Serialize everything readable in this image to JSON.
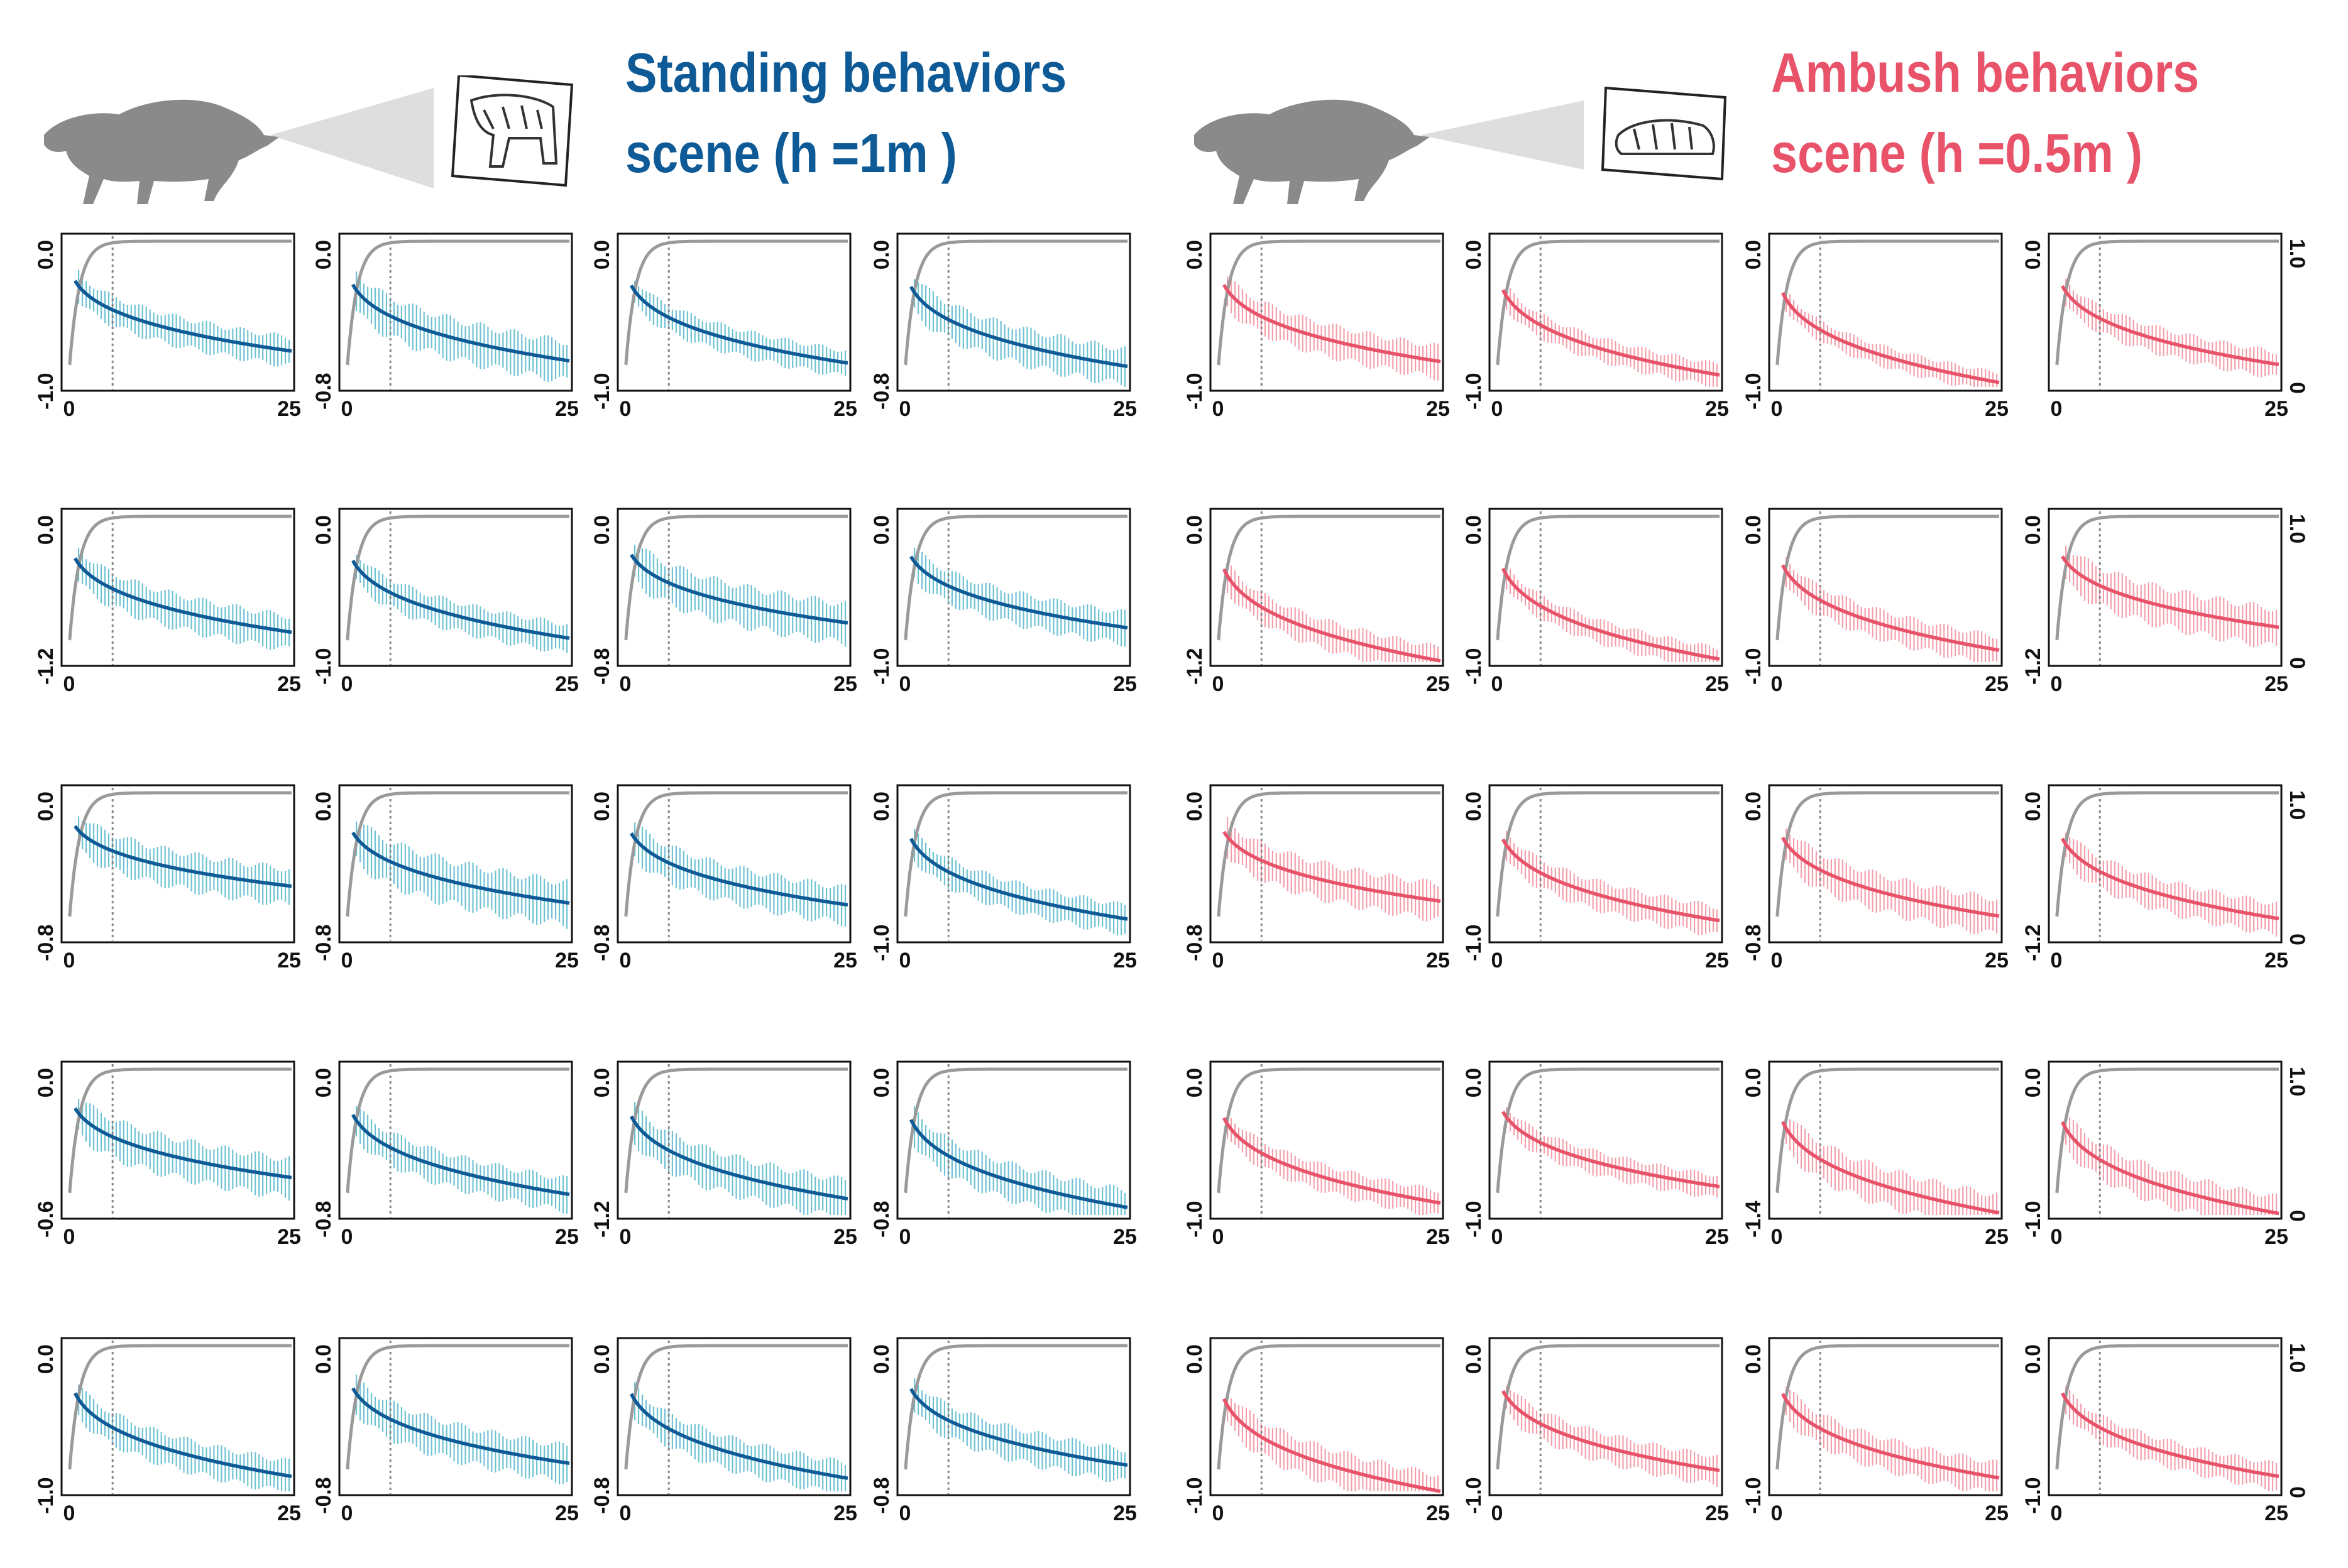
{
  "colors": {
    "standing": "#0d5a96",
    "standing_band": "#6fc2d4",
    "ambush": "#e8536a",
    "ambush_band": "#f4a0ac",
    "accumulation": "#9a9a9a",
    "threshold": "#888888",
    "animal": "#8a8a8a"
  },
  "scenes": [
    {
      "id": "standing",
      "title_line1": "Standing behaviors",
      "title_line2": "scene  (h =1m )",
      "boar_icon": "boar-icon",
      "predator_icon": "standing-tiger-icon"
    },
    {
      "id": "ambush",
      "title_line1": "Ambush behaviors",
      "title_line2": "scene  (h =0.5m  )",
      "boar_icon": "boar-icon",
      "predator_icon": "crouching-tiger-icon"
    }
  ],
  "chart_data": {
    "type": "line",
    "description_axes": "small-multiple grid: 5 rows x 8 panels; left 4 columns = standing scene, right 4 columns = ambush scene",
    "x": {
      "min": 0,
      "max": 25,
      "ticks": [
        "0",
        "25"
      ],
      "threshold": 5
    },
    "y_top_label": "0.0",
    "right_axis": {
      "min": 0,
      "max": 1.0,
      "ticks": [
        "1.0",
        "0"
      ],
      "series": "cumulative (gray)"
    },
    "series": [
      "decay curve with error bars",
      "cumulative curve (gray)"
    ],
    "rows": [
      [
        {
          "scene": "standing",
          "ymin": -1.0,
          "ybottom_label": "-1.0",
          "end": -0.76,
          "band": 0.1
        },
        {
          "scene": "standing",
          "ymin": -0.8,
          "ybottom_label": "-0.8",
          "end": -0.66,
          "band": 0.11
        },
        {
          "scene": "standing",
          "ymin": -1.0,
          "ybottom_label": "-1.0",
          "end": -0.84,
          "band": 0.09
        },
        {
          "scene": "standing",
          "ymin": -0.8,
          "ybottom_label": "-0.8",
          "end": -0.69,
          "band": 0.1
        },
        {
          "scene": "ambush",
          "ymin": -1.0,
          "ybottom_label": "-1.0",
          "end": -0.83,
          "band": 0.11
        },
        {
          "scene": "ambush",
          "ymin": -1.0,
          "ybottom_label": "-1.0",
          "end": -0.92,
          "band": 0.08
        },
        {
          "scene": "ambush",
          "ymin": -1.0,
          "ybottom_label": "-1.0",
          "end": -0.97,
          "band": 0.07
        },
        {
          "scene": "ambush",
          "ymin": -1.0,
          "ybottom_label": "",
          "end": -0.85,
          "band": 0.09,
          "right_axis": true
        }
      ],
      [
        {
          "scene": "standing",
          "ymin": -1.2,
          "ybottom_label": "-1.2",
          "end": -0.96,
          "band": 0.14
        },
        {
          "scene": "standing",
          "ymin": -1.0,
          "ybottom_label": "-1.0",
          "end": -0.84,
          "band": 0.1
        },
        {
          "scene": "standing",
          "ymin": -0.8,
          "ybottom_label": "-0.8",
          "end": -0.59,
          "band": 0.11
        },
        {
          "scene": "standing",
          "ymin": -1.0,
          "ybottom_label": "-1.0",
          "end": -0.77,
          "band": 0.11
        },
        {
          "scene": "ambush",
          "ymin": -1.2,
          "ybottom_label": "-1.2",
          "end": -1.19,
          "band": 0.12
        },
        {
          "scene": "ambush",
          "ymin": -1.0,
          "ybottom_label": "-1.0",
          "end": -0.98,
          "band": 0.08
        },
        {
          "scene": "ambush",
          "ymin": -1.0,
          "ybottom_label": "-1.0",
          "end": -0.92,
          "band": 0.1
        },
        {
          "scene": "ambush",
          "ymin": -1.2,
          "ybottom_label": "-1.2",
          "end": -0.92,
          "band": 0.16,
          "right_axis": true
        }
      ],
      [
        {
          "scene": "standing",
          "ymin": -0.8,
          "ybottom_label": "-0.8",
          "end": -0.52,
          "band": 0.1
        },
        {
          "scene": "standing",
          "ymin": -0.8,
          "ybottom_label": "-0.8",
          "end": -0.61,
          "band": 0.12
        },
        {
          "scene": "standing",
          "ymin": -0.8,
          "ybottom_label": "-0.8",
          "end": -0.62,
          "band": 0.1
        },
        {
          "scene": "standing",
          "ymin": -1.0,
          "ybottom_label": "-1.0",
          "end": -0.87,
          "band": 0.1
        },
        {
          "scene": "ambush",
          "ymin": -0.8,
          "ybottom_label": "-0.8",
          "end": -0.6,
          "band": 0.1
        },
        {
          "scene": "ambush",
          "ymin": -1.0,
          "ybottom_label": "-1.0",
          "end": -0.88,
          "band": 0.1
        },
        {
          "scene": "ambush",
          "ymin": -0.8,
          "ybottom_label": "-0.8",
          "end": -0.68,
          "band": 0.1
        },
        {
          "scene": "ambush",
          "ymin": -1.2,
          "ybottom_label": "-1.2",
          "end": -1.04,
          "band": 0.13,
          "right_axis": true
        }
      ],
      [
        {
          "scene": "standing",
          "ymin": -0.6,
          "ybottom_label": "-0.6",
          "end": -0.45,
          "band": 0.08
        },
        {
          "scene": "standing",
          "ymin": -0.8,
          "ybottom_label": "-0.8",
          "end": -0.69,
          "band": 0.09
        },
        {
          "scene": "standing",
          "ymin": -1.2,
          "ybottom_label": "-1.2",
          "end": -1.07,
          "band": 0.16
        },
        {
          "scene": "standing",
          "ymin": -0.8,
          "ybottom_label": "-0.8",
          "end": -0.76,
          "band": 0.1
        },
        {
          "scene": "ambush",
          "ymin": -1.0,
          "ybottom_label": "-1.0",
          "end": -0.92,
          "band": 0.09
        },
        {
          "scene": "ambush",
          "ymin": -1.0,
          "ybottom_label": "-1.0",
          "end": -0.81,
          "band": 0.08
        },
        {
          "scene": "ambush",
          "ymin": -1.4,
          "ybottom_label": "-1.4",
          "end": -1.38,
          "band": 0.18
        },
        {
          "scene": "ambush",
          "ymin": -1.0,
          "ybottom_label": "-1.0",
          "end": -0.99,
          "band": 0.12,
          "right_axis": true
        }
      ],
      [
        {
          "scene": "standing",
          "ymin": -1.0,
          "ybottom_label": "-1.0",
          "end": -0.9,
          "band": 0.11
        },
        {
          "scene": "standing",
          "ymin": -0.8,
          "ybottom_label": "-0.8",
          "end": -0.65,
          "band": 0.1
        },
        {
          "scene": "standing",
          "ymin": -0.8,
          "ybottom_label": "-0.8",
          "end": -0.73,
          "band": 0.09
        },
        {
          "scene": "standing",
          "ymin": -0.8,
          "ybottom_label": "-0.8",
          "end": -0.66,
          "band": 0.09
        },
        {
          "scene": "ambush",
          "ymin": -1.0,
          "ybottom_label": "-1.0",
          "end": -1.0,
          "band": 0.12
        },
        {
          "scene": "ambush",
          "ymin": -1.0,
          "ybottom_label": "-1.0",
          "end": -0.86,
          "band": 0.1
        },
        {
          "scene": "ambush",
          "ymin": -1.0,
          "ybottom_label": "-1.0",
          "end": -0.91,
          "band": 0.11
        },
        {
          "scene": "ambush",
          "ymin": -1.0,
          "ybottom_label": "-1.0",
          "end": -0.9,
          "band": 0.09,
          "right_axis": true
        }
      ]
    ]
  }
}
